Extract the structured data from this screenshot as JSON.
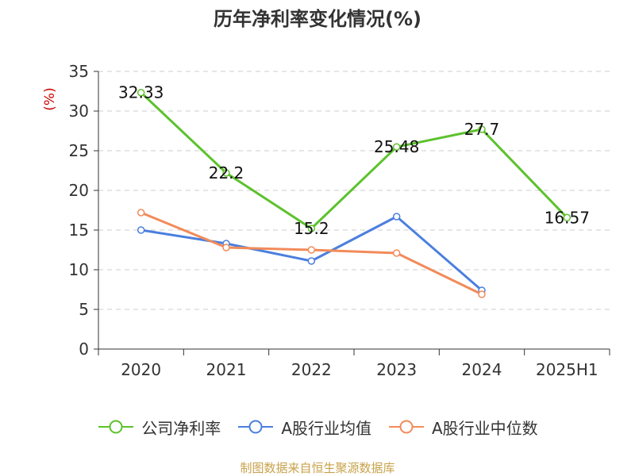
{
  "title": "历年净利率变化情况(%)",
  "source": "制图数据来自恒生聚源数据库",
  "chart_data": {
    "type": "line",
    "categories": [
      "2020",
      "2021",
      "2022",
      "2023",
      "2024",
      "2025H1"
    ],
    "ylabel": "(%)",
    "ylim": [
      0,
      35
    ],
    "yticks": [
      0,
      5,
      10,
      15,
      20,
      25,
      30,
      35
    ],
    "grid": true,
    "legend_position": "bottom",
    "series": [
      {
        "name": "公司净利率",
        "color": "#5cc22d",
        "values": [
          32.33,
          22.2,
          15.2,
          25.48,
          27.7,
          16.57
        ],
        "labels": [
          "32.33",
          "22.2",
          "15.2",
          "25.48",
          "27.7",
          "16.57"
        ]
      },
      {
        "name": "A股行业均值",
        "color": "#4b7fde",
        "values": [
          15.0,
          13.3,
          11.1,
          16.7,
          7.4,
          null
        ]
      },
      {
        "name": "A股行业中位数",
        "color": "#f28b5a",
        "values": [
          17.2,
          12.8,
          12.5,
          12.1,
          6.9,
          null
        ]
      }
    ]
  }
}
